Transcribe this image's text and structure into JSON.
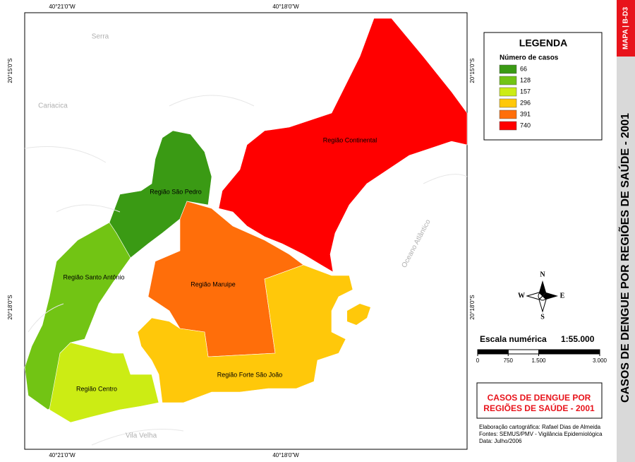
{
  "side_strip": {
    "code": "MAPA | B-D3",
    "title": "CASOS DE DENGUE POR REGIÕES DE SAÚDE - 2001"
  },
  "map": {
    "coord_labels": {
      "top": [
        "40°21'0\"W",
        "40°18'0\"W"
      ],
      "bottom": [
        "40°21'0\"W",
        "40°18'0\"W"
      ],
      "left": [
        "20°15'0\"S",
        "20°18'0\"S"
      ],
      "right": [
        "20°15'0\"S",
        "20°18'0\"S"
      ]
    },
    "place_labels": [
      "Serra",
      "Cariacica",
      "Vila Velha",
      "Oceano Atlântico"
    ],
    "regions": [
      {
        "name": "Região Continental",
        "color": "#ff0000"
      },
      {
        "name": "Região São Pedro",
        "color": "#3a9a14"
      },
      {
        "name": "Região Santo Antônio",
        "color": "#72c414"
      },
      {
        "name": "Região Centro",
        "color": "#ccec14"
      },
      {
        "name": "Região Maruipe",
        "color": "#ff6e0a"
      },
      {
        "name": "Região Forte São João",
        "color": "#ffc80a"
      }
    ]
  },
  "legend": {
    "title": "LEGENDA",
    "subtitle": "Número de casos",
    "items": [
      {
        "value": 66,
        "color": "#3a9a14"
      },
      {
        "value": 128,
        "color": "#72c414"
      },
      {
        "value": 157,
        "color": "#ccec14"
      },
      {
        "value": 296,
        "color": "#ffc80a"
      },
      {
        "value": 391,
        "color": "#ff6e0a"
      },
      {
        "value": 740,
        "color": "#ff0000"
      }
    ]
  },
  "compass": {
    "north": "N",
    "south": "S",
    "east": "E",
    "west": "W"
  },
  "scale": {
    "label": "Escala numérica",
    "ratio": "1:55.000",
    "ticks": [
      0,
      750,
      {
        "value": 1500,
        "label": "1.500"
      },
      {
        "value": 3000,
        "label": "3.000"
      }
    ]
  },
  "title_box": {
    "lines": [
      "CASOS DE DENGUE POR",
      "REGIÕES DE SAÚDE - 2001"
    ]
  },
  "credits": [
    "Elaboração cartográfica: Rafael Dias de Almeida",
    "Fontes: SEMUS/PMV - Vigilância Epidemiológica",
    "Data: Julho/2006"
  ]
}
